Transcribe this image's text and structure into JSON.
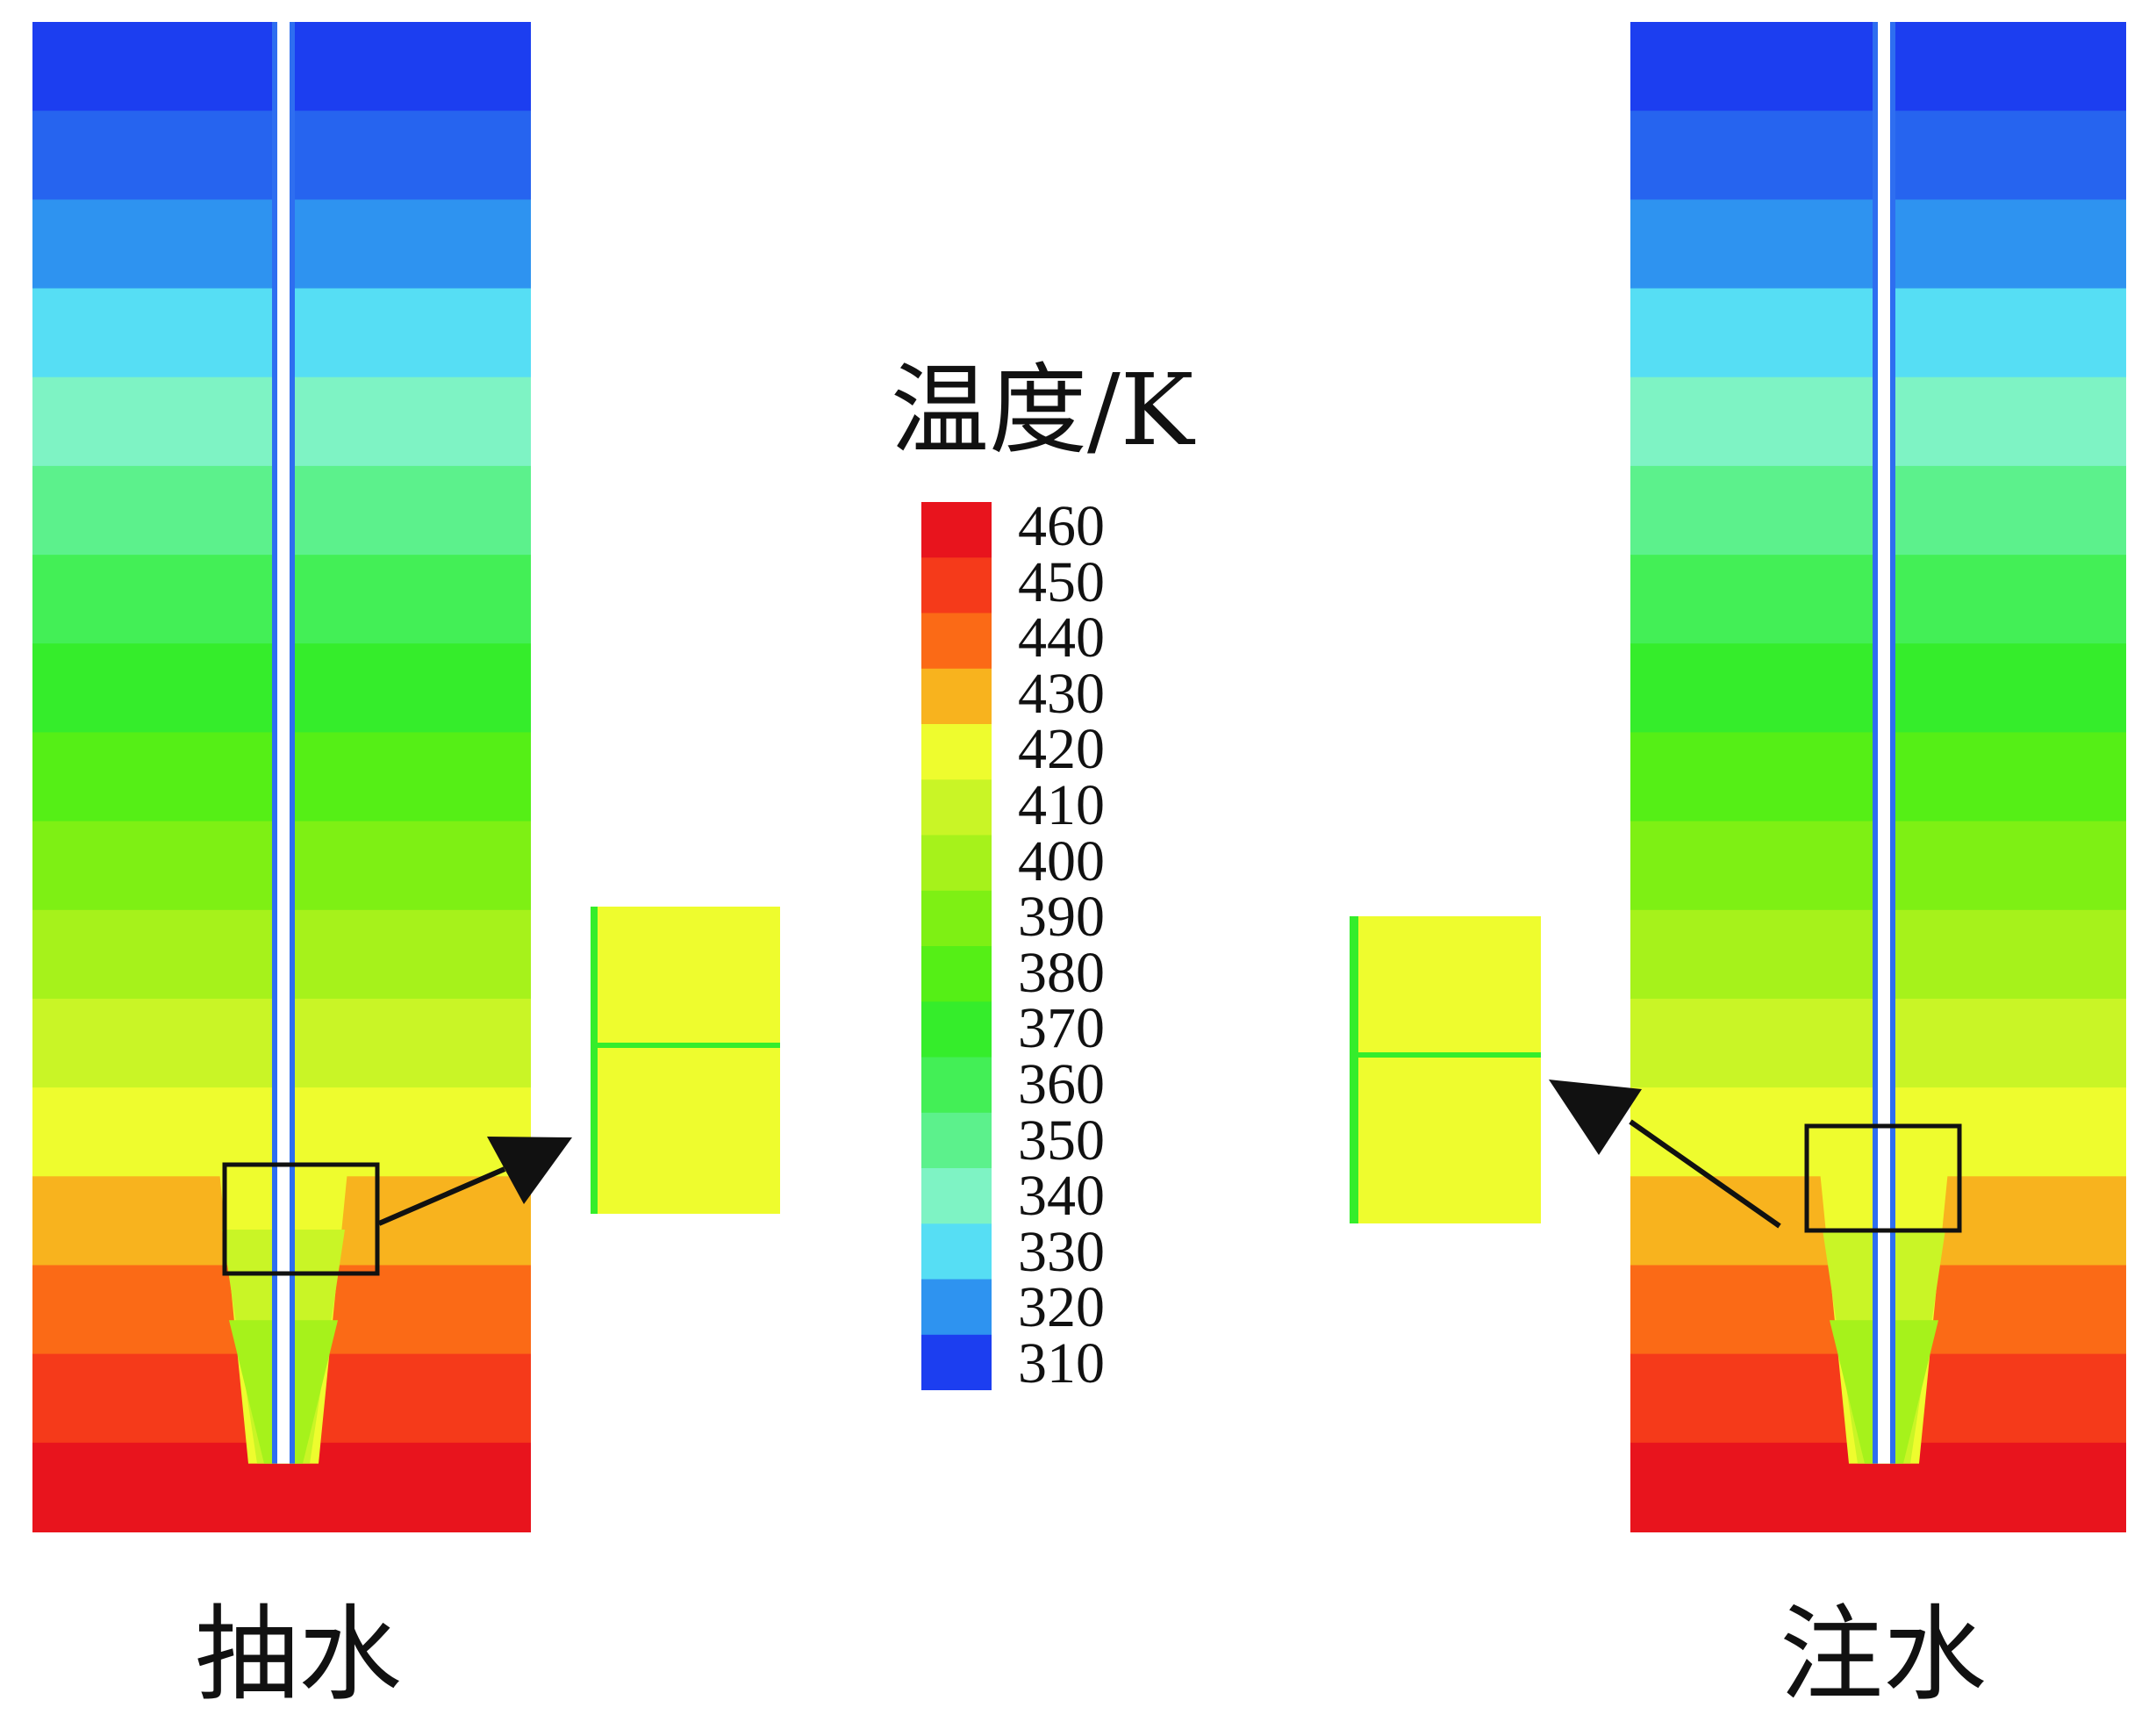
{
  "figure": {
    "left_label": "抽水",
    "right_label": "注水",
    "legend_title": "温度/K"
  },
  "legend": {
    "ticks": [
      "460",
      "450",
      "440",
      "430",
      "420",
      "410",
      "400",
      "390",
      "380",
      "370",
      "360",
      "350",
      "340",
      "330",
      "320",
      "310"
    ],
    "colors": [
      "#e8141d",
      "#f53a1a",
      "#fb6a16",
      "#f8b31e",
      "#eefc2e",
      "#c9f526",
      "#a6f21b",
      "#7ef014",
      "#55ef16",
      "#35ed2b",
      "#43ef56",
      "#5cf18c",
      "#7ef3c4",
      "#56def4",
      "#2e93f0",
      "#1c3ef0"
    ],
    "unit": "K"
  },
  "fields": {
    "band_colors_top_to_bottom": [
      "#1c3ef0",
      "#2664ef",
      "#2e93f0",
      "#56def4",
      "#7ef3c4",
      "#5cf18c",
      "#43ef56",
      "#35ed2b",
      "#55ef16",
      "#7ef014",
      "#a6f21b",
      "#c9f526",
      "#eefc2e",
      "#f8b31e",
      "#fb6a16",
      "#f53a1a",
      "#e8141d"
    ],
    "well_color": "#ffffff",
    "inset_color": "#eefc2e",
    "inset_line_color": "#35ed2b"
  }
}
